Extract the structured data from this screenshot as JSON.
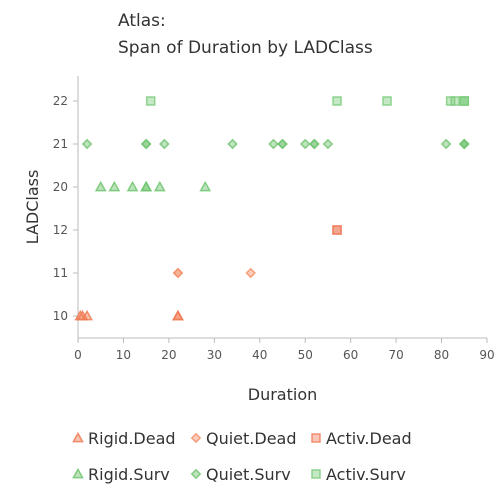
{
  "chart_data": {
    "type": "scatter",
    "title": "Atlas:",
    "subtitle": "Span of Duration by LADClass",
    "xlabel": "Duration",
    "ylabel": "LADClass",
    "xlim": [
      0,
      90
    ],
    "xticks": [
      0,
      10,
      20,
      30,
      40,
      50,
      60,
      70,
      80,
      90
    ],
    "categories": [
      "10",
      "11",
      "12",
      "20",
      "21",
      "22"
    ],
    "grid": false,
    "legend_position": "bottom",
    "series": [
      {
        "name": "Rigid.Dead",
        "marker": "triangle",
        "color": "#f07a52",
        "points": [
          {
            "x": 0.5,
            "y": "10"
          },
          {
            "x": 1,
            "y": "10"
          },
          {
            "x": 2,
            "y": "10"
          },
          {
            "x": 22,
            "y": "10"
          },
          {
            "x": 22,
            "y": "10"
          }
        ]
      },
      {
        "name": "Quiet.Dead",
        "marker": "diamond",
        "color": "#f5926b",
        "points": [
          {
            "x": 22,
            "y": "11"
          },
          {
            "x": 22,
            "y": "11"
          },
          {
            "x": 38,
            "y": "11"
          }
        ]
      },
      {
        "name": "Activ.Dead",
        "marker": "square",
        "color": "#ef8060",
        "points": [
          {
            "x": 57,
            "y": "12"
          },
          {
            "x": 57,
            "y": "12"
          }
        ]
      },
      {
        "name": "Rigid.Surv",
        "marker": "triangle",
        "color": "#6fc46f",
        "points": [
          {
            "x": 5,
            "y": "20"
          },
          {
            "x": 8,
            "y": "20"
          },
          {
            "x": 12,
            "y": "20"
          },
          {
            "x": 15,
            "y": "20"
          },
          {
            "x": 15,
            "y": "20"
          },
          {
            "x": 18,
            "y": "20"
          },
          {
            "x": 28,
            "y": "20"
          }
        ]
      },
      {
        "name": "Quiet.Surv",
        "marker": "diamond",
        "color": "#72c472",
        "points": [
          {
            "x": 2,
            "y": "21"
          },
          {
            "x": 15,
            "y": "21"
          },
          {
            "x": 15,
            "y": "21"
          },
          {
            "x": 19,
            "y": "21"
          },
          {
            "x": 34,
            "y": "21"
          },
          {
            "x": 43,
            "y": "21"
          },
          {
            "x": 45,
            "y": "21"
          },
          {
            "x": 45,
            "y": "21"
          },
          {
            "x": 50,
            "y": "21"
          },
          {
            "x": 52,
            "y": "21"
          },
          {
            "x": 52,
            "y": "21"
          },
          {
            "x": 55,
            "y": "21"
          },
          {
            "x": 81,
            "y": "21"
          },
          {
            "x": 85,
            "y": "21"
          },
          {
            "x": 85,
            "y": "21"
          },
          {
            "x": 85,
            "y": "21"
          }
        ]
      },
      {
        "name": "Activ.Surv",
        "marker": "square",
        "color": "#7fcc7f",
        "points": [
          {
            "x": 16,
            "y": "22"
          },
          {
            "x": 57,
            "y": "22"
          },
          {
            "x": 68,
            "y": "22"
          },
          {
            "x": 82,
            "y": "22"
          },
          {
            "x": 83,
            "y": "22"
          },
          {
            "x": 85,
            "y": "22"
          },
          {
            "x": 85,
            "y": "22"
          },
          {
            "x": 85,
            "y": "22"
          }
        ]
      }
    ]
  }
}
